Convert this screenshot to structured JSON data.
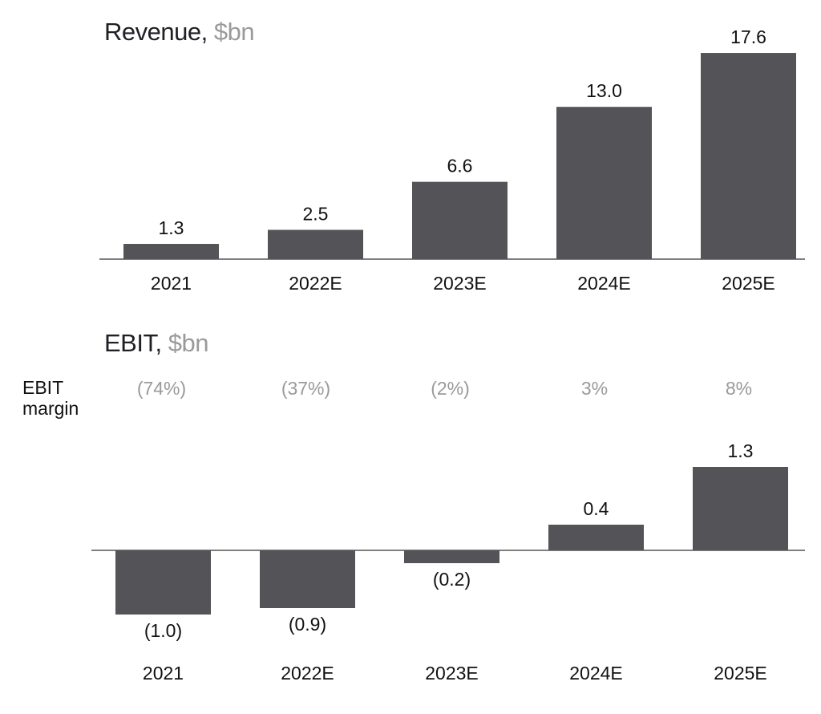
{
  "chart_data": [
    {
      "type": "bar",
      "title": "Revenue,",
      "title_unit": "$bn",
      "categories": [
        "2021",
        "2022E",
        "2023E",
        "2024E",
        "2025E"
      ],
      "values": [
        1.3,
        2.5,
        6.6,
        13.0,
        17.6
      ],
      "value_labels": [
        "1.3",
        "2.5",
        "6.6",
        "13.0",
        "17.6"
      ],
      "bar_color": "#545458",
      "grid": false
    },
    {
      "type": "bar",
      "title": "EBIT,",
      "title_unit": "$bn",
      "categories": [
        "2021",
        "2022E",
        "2023E",
        "2024E",
        "2025E"
      ],
      "values": [
        -1.0,
        -0.9,
        -0.2,
        0.4,
        1.3
      ],
      "value_labels": [
        "(1.0)",
        "(0.9)",
        "(0.2)",
        "0.4",
        "1.3"
      ],
      "margin_label": "EBIT margin",
      "margins": [
        "(74%)",
        "(37%)",
        "(2%)",
        "3%",
        "8%"
      ],
      "bar_color": "#545458",
      "grid": false
    }
  ],
  "colors": {
    "bar": "#545458",
    "text": "#1f1f24",
    "muted": "#9a9a9a",
    "axis": "#555555"
  }
}
